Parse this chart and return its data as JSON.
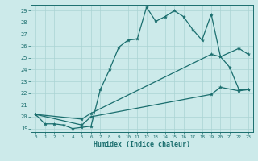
{
  "title": "",
  "xlabel": "Humidex (Indice chaleur)",
  "ylabel": "",
  "bg_color": "#cceaea",
  "grid_color": "#aad4d4",
  "line_color": "#1a6e6e",
  "xlim": [
    -0.5,
    23.5
  ],
  "ylim": [
    18.7,
    29.5
  ],
  "yticks": [
    19,
    20,
    21,
    22,
    23,
    24,
    25,
    26,
    27,
    28,
    29
  ],
  "xticks": [
    0,
    1,
    2,
    3,
    4,
    5,
    6,
    7,
    8,
    9,
    10,
    11,
    12,
    13,
    14,
    15,
    16,
    17,
    18,
    19,
    20,
    21,
    22,
    23
  ],
  "line1_x": [
    0,
    1,
    2,
    3,
    4,
    5,
    6,
    7,
    8,
    9,
    10,
    11,
    12,
    13,
    14,
    15,
    16,
    17,
    18,
    19,
    20,
    21,
    22,
    23
  ],
  "line1_y": [
    20.2,
    19.4,
    19.4,
    19.3,
    19.0,
    19.1,
    19.2,
    22.3,
    24.0,
    25.9,
    26.5,
    26.6,
    29.3,
    28.1,
    28.5,
    29.0,
    28.5,
    27.4,
    26.5,
    28.7,
    25.1,
    24.2,
    22.3,
    22.3
  ],
  "line2_x": [
    0,
    5,
    6,
    19,
    20,
    22,
    23
  ],
  "line2_y": [
    20.2,
    19.8,
    20.3,
    25.3,
    25.1,
    25.8,
    25.3
  ],
  "line3_x": [
    0,
    5,
    6,
    19,
    20,
    22,
    23
  ],
  "line3_y": [
    20.2,
    19.3,
    20.0,
    21.9,
    22.5,
    22.2,
    22.3
  ]
}
